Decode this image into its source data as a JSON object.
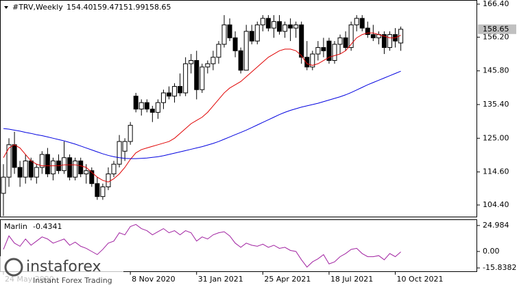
{
  "chart_data": {
    "type": "candlestick",
    "header": {
      "symbol": "#TRV,Weekly",
      "values": [
        "154.40",
        "159.47",
        "151.99",
        "158.65"
      ]
    },
    "categories": [
      "24 May 2020",
      null,
      null,
      null,
      null,
      null,
      null,
      null,
      null,
      null,
      null,
      null,
      null,
      null,
      null,
      null,
      null,
      null,
      null,
      null,
      null,
      null,
      null,
      "8 Nov 2020",
      null,
      null,
      null,
      null,
      null,
      null,
      null,
      null,
      null,
      null,
      null,
      "31 Jan 2021",
      null,
      null,
      null,
      null,
      null,
      null,
      null,
      null,
      null,
      null,
      null,
      "25 Apr 2021",
      null,
      null,
      null,
      null,
      null,
      null,
      null,
      null,
      null,
      null,
      null,
      "18 Jul 2021",
      null,
      null,
      null,
      null,
      null,
      null,
      null,
      null,
      null,
      null,
      null,
      "10 Oct 2021",
      null
    ],
    "open": [
      108,
      113,
      123,
      116,
      113,
      118,
      113,
      116,
      120,
      114,
      118,
      115,
      119,
      113,
      118,
      114,
      115,
      111,
      107,
      110,
      114,
      117,
      121,
      124,
      138,
      134,
      136,
      134,
      133,
      136,
      139,
      138,
      141,
      139,
      148,
      149,
      140,
      147,
      148,
      150,
      154,
      160,
      156,
      152,
      146,
      158,
      155,
      160,
      162,
      159,
      161,
      158,
      160,
      159,
      160,
      150,
      147,
      151,
      153,
      155,
      149,
      154,
      156,
      153,
      160,
      162,
      159,
      157,
      156,
      157,
      153,
      157,
      154.4
    ],
    "high": [
      117,
      125,
      127,
      118,
      120,
      119,
      117,
      121,
      122,
      119,
      120,
      124,
      120,
      119,
      119,
      117,
      116,
      113,
      111,
      116,
      118,
      126,
      125,
      130,
      139,
      137,
      137,
      135,
      137,
      140,
      141,
      142,
      145,
      150,
      151,
      152,
      148,
      149,
      152,
      155,
      163,
      162,
      158,
      153,
      160,
      160,
      161,
      163,
      163,
      163,
      163,
      161,
      162,
      161,
      161,
      155,
      152,
      155,
      156,
      156,
      155,
      157,
      158,
      161,
      163,
      163,
      161,
      160,
      158,
      158,
      158,
      159,
      159.47
    ],
    "low": [
      101,
      110,
      114,
      110,
      111,
      112,
      111,
      114,
      113,
      112,
      114,
      114,
      112,
      112,
      113,
      111,
      110,
      106,
      106,
      109,
      113,
      116,
      118,
      123,
      133,
      132,
      133,
      130,
      131,
      134,
      137,
      136,
      138,
      138,
      145,
      137,
      139,
      145,
      146,
      148,
      153,
      155,
      150,
      145,
      146,
      154,
      154,
      158,
      158,
      156,
      157,
      156,
      155,
      156,
      148,
      146,
      146,
      149,
      150,
      148,
      148,
      151,
      152,
      152,
      158,
      158,
      156,
      155,
      154,
      151,
      152,
      153,
      151.99
    ],
    "close": [
      113,
      123,
      116,
      113,
      118,
      113,
      116,
      120,
      114,
      118,
      115,
      119,
      113,
      118,
      114,
      115,
      111,
      107,
      110,
      114,
      117,
      124,
      124,
      129,
      134,
      136,
      134,
      133,
      136,
      139,
      138,
      141,
      139,
      148,
      149,
      140,
      147,
      148,
      150,
      154,
      160,
      156,
      152,
      146,
      158,
      155,
      160,
      162,
      159,
      161,
      158,
      160,
      159,
      160,
      150,
      147,
      151,
      153,
      152,
      149,
      154,
      156,
      153,
      160,
      162,
      159,
      157,
      156,
      157,
      153,
      157,
      155,
      158.65
    ],
    "overlays": [
      {
        "color": "#e00000",
        "values": [
          119,
          122,
          123,
          122,
          120,
          118,
          117,
          116.5,
          116.5,
          116.5,
          116.5,
          116.8,
          116.8,
          116.8,
          116.5,
          116,
          114.5,
          113,
          112,
          111.5,
          112.5,
          114,
          116,
          118.5,
          120.5,
          121.5,
          122,
          122.5,
          123,
          123.5,
          124,
          125,
          126.5,
          128,
          129.5,
          130.5,
          131.5,
          133,
          135,
          137,
          139,
          140.5,
          141.5,
          142.5,
          144,
          145.5,
          147,
          148.5,
          150,
          151,
          152,
          152.5,
          152.5,
          152,
          150.5,
          148,
          147.5,
          148,
          149,
          150,
          150.5,
          151,
          152,
          154,
          156,
          157,
          157.5,
          157.5,
          157,
          156.5,
          156,
          156,
          156.8
        ]
      },
      {
        "color": "#0000e0",
        "values": [
          128,
          127.8,
          127.5,
          127.2,
          126.8,
          126.5,
          126.1,
          125.8,
          125.4,
          125,
          124.6,
          124.2,
          123.7,
          123.2,
          122.6,
          122,
          121.4,
          120.8,
          120.2,
          119.7,
          119.3,
          119,
          118.8,
          118.7,
          118.7,
          118.8,
          118.9,
          119.1,
          119.3,
          119.6,
          120,
          120.4,
          120.8,
          121.2,
          121.6,
          122,
          122.4,
          122.9,
          123.4,
          124,
          124.7,
          125.4,
          126.1,
          126.8,
          127.5,
          128.3,
          129.1,
          129.9,
          130.7,
          131.5,
          132.3,
          133,
          133.6,
          134.1,
          134.6,
          135,
          135.4,
          135.8,
          136.3,
          136.8,
          137.3,
          137.8,
          138.4,
          139.1,
          139.9,
          140.7,
          141.5,
          142.2,
          142.9,
          143.6,
          144.3,
          145,
          145.7
        ]
      }
    ],
    "ylim": [
      100.6,
      167.67
    ],
    "yticks": [
      {
        "value": 166.4,
        "label": "166.40"
      },
      {
        "value": 156.2,
        "label": "156.20"
      },
      {
        "value": 145.8,
        "label": "145.80"
      },
      {
        "value": 135.4,
        "label": "135.40"
      },
      {
        "value": 125,
        "label": "125.00"
      },
      {
        "value": 114.6,
        "label": "114.60"
      },
      {
        "value": 104.4,
        "label": "104.40"
      }
    ],
    "last_price": {
      "value": 158.65,
      "label": "158.65"
    },
    "indicator": {
      "name": "Marlin",
      "color": "#a020a0",
      "ylim": [
        -19.72,
        30.24
      ],
      "yticks": [
        24.984,
        {
          "value": 0,
          "label": "0.00"
        },
        -15.8382
      ],
      "values": [
        2,
        15,
        8,
        5,
        12,
        6,
        10,
        14,
        12,
        8,
        10,
        12,
        6,
        9,
        5,
        3,
        0,
        -3,
        2,
        8,
        10,
        18,
        16,
        24,
        26,
        22,
        20,
        16,
        19,
        22,
        18,
        20,
        16,
        20,
        18,
        10,
        14,
        12,
        16,
        18,
        19,
        15,
        8,
        4,
        8,
        6,
        5,
        7,
        4,
        6,
        3,
        4,
        1,
        0,
        -8,
        -15,
        -10,
        -7,
        -3,
        -12,
        -10,
        -5,
        -2,
        2,
        3,
        -2,
        -5,
        -5,
        -4,
        -8,
        -2,
        -5,
        -0.4341
      ]
    }
  },
  "watermark": {
    "brand": "instaforex",
    "tagline": "Instant Forex Trading"
  }
}
